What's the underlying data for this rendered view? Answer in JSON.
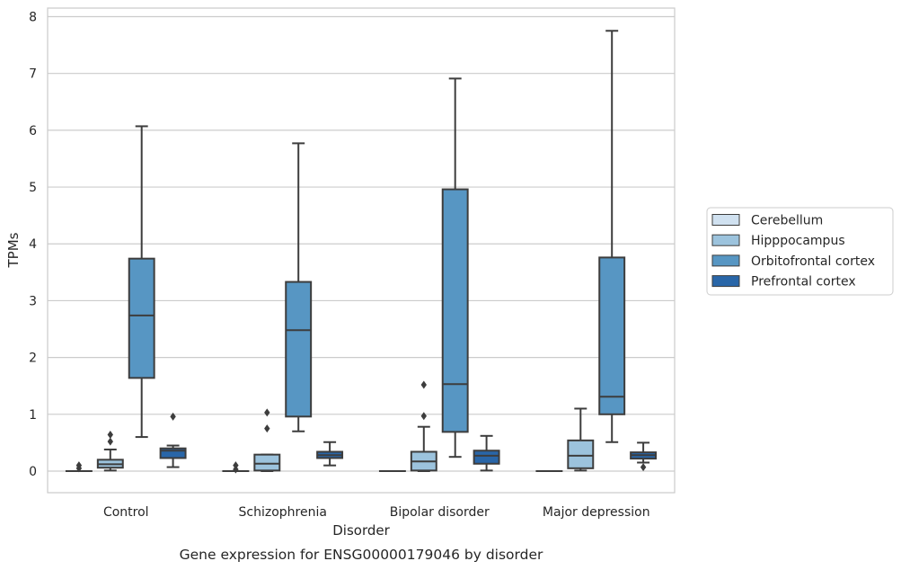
{
  "caption": "Gene expression for ENSG00000179046 by disorder",
  "chart_data": {
    "type": "box",
    "xlabel": "Disorder",
    "ylabel": "TPMs",
    "ylim": [
      -0.38,
      8.15
    ],
    "yticks": [
      0,
      1,
      2,
      3,
      4,
      5,
      6,
      7,
      8
    ],
    "grid": true,
    "legend_position": "right",
    "categories": [
      "Control",
      "Schizophrenia",
      "Bipolar disorder",
      "Major depression"
    ],
    "series": [
      {
        "name": "Cerebellum",
        "color": "#d0e1f0",
        "boxes": [
          {
            "q1": 0,
            "median": 0,
            "q3": 0,
            "whisker_low": 0,
            "whisker_high": 0,
            "outliers": [
              0.05,
              0.1
            ]
          },
          {
            "q1": 0,
            "median": 0,
            "q3": 0,
            "whisker_low": 0,
            "whisker_high": 0,
            "outliers": [
              0.03,
              0.1
            ]
          },
          {
            "q1": 0,
            "median": 0,
            "q3": 0,
            "whisker_low": 0,
            "whisker_high": 0,
            "outliers": []
          },
          {
            "q1": 0,
            "median": 0,
            "q3": 0,
            "whisker_low": 0,
            "whisker_high": 0,
            "outliers": []
          }
        ]
      },
      {
        "name": "Hipppocampus",
        "color": "#9cc3dd",
        "boxes": [
          {
            "q1": 0.06,
            "median": 0.12,
            "q3": 0.2,
            "whisker_low": 0.01,
            "whisker_high": 0.38,
            "outliers": [
              0.52,
              0.64
            ]
          },
          {
            "q1": 0.01,
            "median": 0.13,
            "q3": 0.29,
            "whisker_low": 0,
            "whisker_high": 0.29,
            "outliers": [
              0.75,
              1.03
            ]
          },
          {
            "q1": 0.01,
            "median": 0.17,
            "q3": 0.34,
            "whisker_low": 0,
            "whisker_high": 0.78,
            "outliers": [
              0.97,
              1.52
            ]
          },
          {
            "q1": 0.05,
            "median": 0.27,
            "q3": 0.54,
            "whisker_low": 0.01,
            "whisker_high": 1.1,
            "outliers": []
          }
        ]
      },
      {
        "name": "Orbitofrontal cortex",
        "color": "#5796c3",
        "boxes": [
          {
            "q1": 1.64,
            "median": 2.74,
            "q3": 3.74,
            "whisker_low": 0.6,
            "whisker_high": 6.07,
            "outliers": []
          },
          {
            "q1": 0.96,
            "median": 2.48,
            "q3": 3.33,
            "whisker_low": 0.7,
            "whisker_high": 5.77,
            "outliers": []
          },
          {
            "q1": 0.69,
            "median": 1.53,
            "q3": 4.96,
            "whisker_low": 0.25,
            "whisker_high": 6.91,
            "outliers": []
          },
          {
            "q1": 1.0,
            "median": 1.31,
            "q3": 3.76,
            "whisker_low": 0.51,
            "whisker_high": 7.75,
            "outliers": []
          }
        ]
      },
      {
        "name": "Prefrontal cortex",
        "color": "#2966a8",
        "boxes": [
          {
            "q1": 0.23,
            "median": 0.36,
            "q3": 0.4,
            "whisker_low": 0.07,
            "whisker_high": 0.45,
            "outliers": [
              0.96
            ]
          },
          {
            "q1": 0.23,
            "median": 0.28,
            "q3": 0.34,
            "whisker_low": 0.1,
            "whisker_high": 0.51,
            "outliers": []
          },
          {
            "q1": 0.13,
            "median": 0.27,
            "q3": 0.36,
            "whisker_low": 0.01,
            "whisker_high": 0.62,
            "outliers": []
          },
          {
            "q1": 0.22,
            "median": 0.28,
            "q3": 0.33,
            "whisker_low": 0.15,
            "whisker_high": 0.5,
            "outliers": [
              0.07
            ]
          }
        ]
      }
    ]
  }
}
